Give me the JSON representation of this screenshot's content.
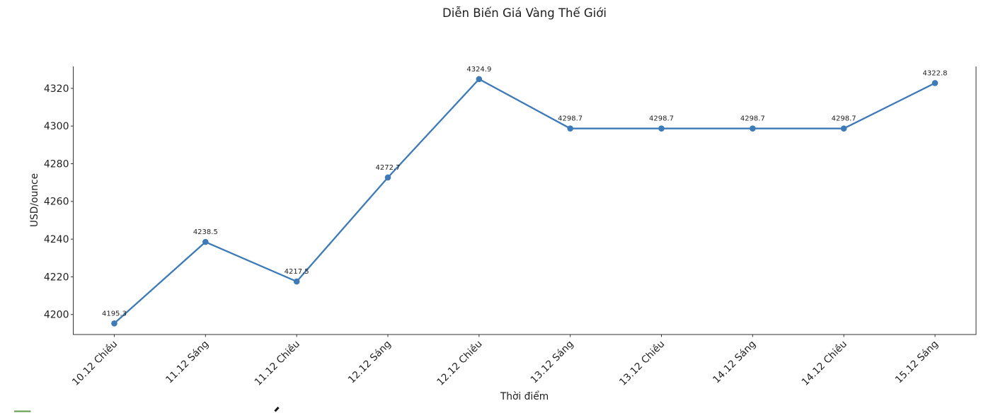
{
  "chart_data": {
    "type": "line",
    "title": "Diễn Biến Giá Vàng Thế Giới",
    "xlabel": "Thời điểm",
    "ylabel": "USD/ounce",
    "categories": [
      "10.12 Chiều",
      "11.12 Sáng",
      "11.12 Chiều",
      "12.12 Sáng",
      "12.12 Chiều",
      "13.12 Sáng",
      "13.12 Chiều",
      "14.12 Sáng",
      "14.12 Chiều",
      "15.12 Sáng"
    ],
    "values": [
      4195.3,
      4238.5,
      4217.5,
      4272.7,
      4324.9,
      4298.7,
      4298.7,
      4298.7,
      4298.7,
      4322.8
    ],
    "point_labels": [
      "4195.3",
      "4238.5",
      "4217.5",
      "4272.7",
      "4324.9",
      "4298.7",
      "4298.7",
      "4298.7",
      "4298.7",
      "4322.8"
    ],
    "yticks": [
      4200,
      4220,
      4240,
      4260,
      4280,
      4300,
      4320
    ],
    "ylim": [
      4189.4,
      4331.6
    ],
    "xlim": [
      -0.45,
      9.45
    ],
    "line_color": "#3d7ab7",
    "axis_color": "#333333",
    "text_color": "#1f1f1f",
    "grid": false,
    "legend": null
  },
  "cropped_bottom": {
    "legend_swatch_color": "#6aa157",
    "title_fragment_color": "#151515"
  }
}
